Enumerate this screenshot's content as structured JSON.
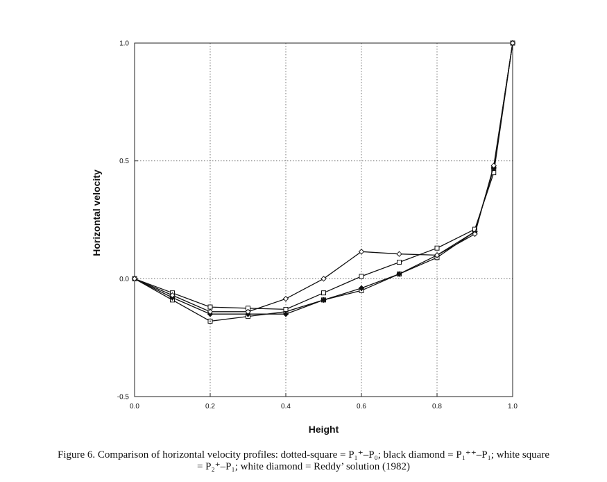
{
  "chart_data": {
    "type": "line",
    "xlabel": "Height",
    "ylabel": "Horizontal velocity",
    "xlim": [
      0.0,
      1.0
    ],
    "ylim": [
      -0.5,
      1.0
    ],
    "grid": true,
    "xticks": [
      "0.0",
      "0.2",
      "0.4",
      "0.6",
      "0.8",
      "1.0"
    ],
    "xtick_values": [
      0.0,
      0.2,
      0.4,
      0.6,
      0.8,
      1.0
    ],
    "yticks": [
      "-0.5",
      "0.0",
      "0.5",
      "1.0"
    ],
    "ytick_values": [
      -0.5,
      0.0,
      0.5,
      1.0
    ],
    "series": [
      {
        "marker": "dotted-square",
        "x": [
          0.0,
          0.1,
          0.2,
          0.3,
          0.4,
          0.5,
          0.6,
          0.7,
          0.8,
          0.9,
          0.95,
          1.0
        ],
        "y": [
          0.0,
          -0.09,
          -0.18,
          -0.16,
          -0.14,
          -0.09,
          -0.05,
          0.02,
          0.09,
          0.2,
          0.47,
          1.0
        ]
      },
      {
        "marker": "black-diamond",
        "x": [
          0.0,
          0.1,
          0.2,
          0.3,
          0.4,
          0.5,
          0.6,
          0.7,
          0.8,
          0.9,
          0.95,
          1.0
        ],
        "y": [
          0.0,
          -0.08,
          -0.15,
          -0.15,
          -0.15,
          -0.09,
          -0.04,
          0.02,
          0.1,
          0.2,
          0.47,
          1.0
        ]
      },
      {
        "marker": "white-square",
        "x": [
          0.0,
          0.1,
          0.2,
          0.3,
          0.4,
          0.5,
          0.6,
          0.7,
          0.8,
          0.9,
          0.95,
          1.0
        ],
        "y": [
          0.0,
          -0.06,
          -0.12,
          -0.125,
          -0.13,
          -0.06,
          0.01,
          0.07,
          0.13,
          0.21,
          0.45,
          1.0
        ]
      },
      {
        "marker": "white-diamond",
        "x": [
          0.0,
          0.1,
          0.2,
          0.3,
          0.4,
          0.5,
          0.6,
          0.7,
          0.8,
          0.9,
          0.95,
          1.0
        ],
        "y": [
          0.0,
          -0.07,
          -0.14,
          -0.14,
          -0.085,
          0.0,
          0.115,
          0.105,
          0.1,
          0.19,
          0.48,
          1.0
        ]
      }
    ]
  },
  "caption": {
    "line1": "Figure 6.  Comparison of horizontal velocity profiles: dotted-square = P₁⁺–P₀; black diamond = P₁⁺⁺–P₁; white square",
    "line2": "= P₂⁺–P₁; white diamond = Reddy’ solution (1982)"
  }
}
